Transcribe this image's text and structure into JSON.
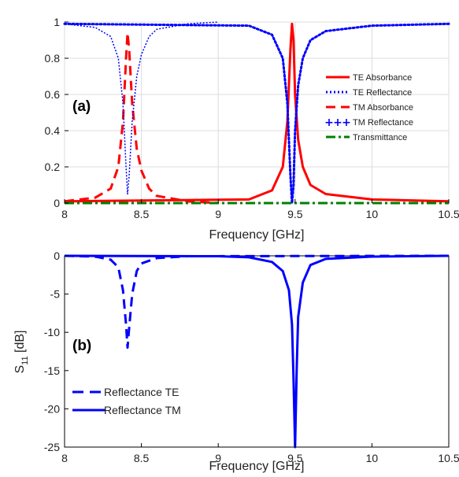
{
  "chart_data": [
    {
      "type": "line",
      "panel_label": "(a)",
      "xlabel": "Frequency [GHz]",
      "ylabel": "",
      "xlim": [
        8,
        10.5
      ],
      "ylim": [
        0,
        1
      ],
      "xticks": [
        "8",
        "8.5",
        "9",
        "9.5",
        "10",
        "10.5"
      ],
      "yticks": [
        "0",
        "0.2",
        "0.4",
        "0.6",
        "0.8",
        "1"
      ],
      "grid": true,
      "legend_position": "right",
      "series": [
        {
          "name": "TE Absorbance",
          "color": "#ff0000",
          "style": "solid",
          "x": [
            8,
            9.2,
            9.35,
            9.42,
            9.45,
            9.47,
            9.48,
            9.49,
            9.5,
            9.52,
            9.55,
            9.6,
            9.7,
            10,
            10.5
          ],
          "y": [
            0.01,
            0.02,
            0.07,
            0.2,
            0.45,
            0.85,
            0.99,
            0.9,
            0.6,
            0.35,
            0.2,
            0.1,
            0.05,
            0.02,
            0.01
          ]
        },
        {
          "name": "TE Reflectance",
          "color": "#0000ff",
          "style": "dotted",
          "x": [
            8,
            9.2,
            9.35,
            9.42,
            9.45,
            9.47,
            9.48,
            9.49,
            9.5,
            9.52,
            9.55,
            9.6,
            9.7,
            10,
            10.5
          ],
          "y": [
            0.99,
            0.98,
            0.93,
            0.8,
            0.55,
            0.15,
            0.0,
            0.1,
            0.4,
            0.65,
            0.8,
            0.9,
            0.95,
            0.98,
            0.99
          ]
        },
        {
          "name": "TM Absorbance",
          "color": "#ff0000",
          "style": "dashed",
          "x": [
            8,
            8.2,
            8.3,
            8.35,
            8.38,
            8.4,
            8.41,
            8.42,
            8.44,
            8.47,
            8.5,
            8.55,
            8.6,
            8.8,
            9
          ],
          "y": [
            0.01,
            0.03,
            0.08,
            0.2,
            0.45,
            0.8,
            0.94,
            0.85,
            0.55,
            0.3,
            0.18,
            0.08,
            0.04,
            0.01,
            0.0
          ]
        },
        {
          "name": "TM Reflectance",
          "color": "#0000ff",
          "style": "plus",
          "x": [
            8,
            8.2,
            8.3,
            8.35,
            8.38,
            8.4,
            8.41,
            8.42,
            8.44,
            8.47,
            8.5,
            8.55,
            8.6,
            8.8,
            9
          ],
          "y": [
            0.99,
            0.97,
            0.92,
            0.8,
            0.55,
            0.2,
            0.05,
            0.15,
            0.45,
            0.7,
            0.82,
            0.92,
            0.96,
            0.99,
            1.0
          ]
        },
        {
          "name": "Transmittance",
          "color": "#008000",
          "style": "dashdot",
          "x": [
            8,
            10.5
          ],
          "y": [
            0.0,
            0.0
          ]
        }
      ]
    },
    {
      "type": "line",
      "panel_label": "(b)",
      "xlabel": "Frequency [GHz]",
      "ylabel": "S11 [dB]",
      "xlim": [
        8,
        10.5
      ],
      "ylim": [
        -25,
        0
      ],
      "xticks": [
        "8",
        "8.5",
        "9",
        "9.5",
        "10",
        "10.5"
      ],
      "yticks": [
        "0",
        "-5",
        "-10",
        "-15",
        "-20",
        "-25"
      ],
      "grid": false,
      "legend_position": "bottom-left",
      "series": [
        {
          "name": "Reflectance TE",
          "color": "#0000ff",
          "style": "dashed",
          "x": [
            8,
            8.2,
            8.3,
            8.35,
            8.38,
            8.4,
            8.41,
            8.42,
            8.44,
            8.47,
            8.5,
            8.6,
            8.8,
            10.5
          ],
          "y": [
            0,
            -0.1,
            -0.5,
            -1.5,
            -4.5,
            -9,
            -12,
            -9.5,
            -5,
            -2,
            -1,
            -0.3,
            -0.05,
            0
          ]
        },
        {
          "name": "Reflectance TM",
          "color": "#0000ff",
          "style": "solid",
          "x": [
            8,
            9.0,
            9.2,
            9.35,
            9.42,
            9.46,
            9.48,
            9.49,
            9.5,
            9.51,
            9.52,
            9.55,
            9.6,
            9.7,
            10,
            10.5
          ],
          "y": [
            0,
            -0.05,
            -0.2,
            -0.8,
            -2,
            -4.5,
            -9,
            -16,
            -25,
            -15,
            -8,
            -3.5,
            -1.2,
            -0.4,
            -0.1,
            0
          ]
        }
      ]
    }
  ]
}
